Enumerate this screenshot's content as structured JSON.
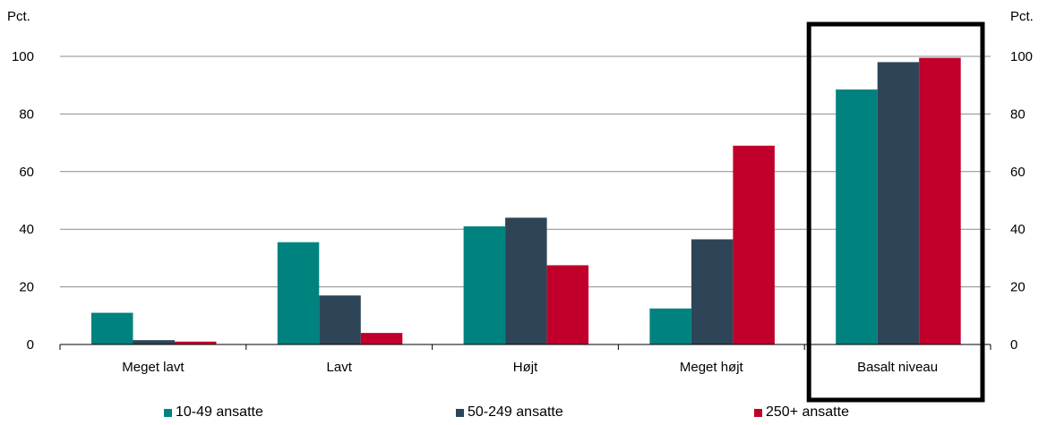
{
  "chart_data": {
    "type": "bar",
    "categories": [
      "Meget lavt",
      "Lavt",
      "Højt",
      "Meget højt",
      "Basalt niveau"
    ],
    "series": [
      {
        "name": "10-49 ansatte",
        "values": [
          11,
          35.5,
          41,
          12.5,
          88.5
        ],
        "color": "#00827f"
      },
      {
        "name": "50-249 ansatte",
        "values": [
          1.5,
          17,
          44,
          36.5,
          98
        ],
        "color": "#2e4557"
      },
      {
        "name": "250+ ansatte",
        "values": [
          1,
          4,
          27.5,
          69,
          99.5
        ],
        "color": "#c0002a"
      }
    ],
    "left_unit": "Pct.",
    "right_unit": "Pct.",
    "ylim": [
      0,
      100
    ],
    "yticks": [
      "0",
      "20",
      "40",
      "60",
      "80",
      "100"
    ],
    "ytick_values": [
      0,
      20,
      40,
      60,
      80,
      100
    ],
    "grid": true,
    "legend_position": "bottom",
    "highlighted_category": "Basalt niveau"
  }
}
